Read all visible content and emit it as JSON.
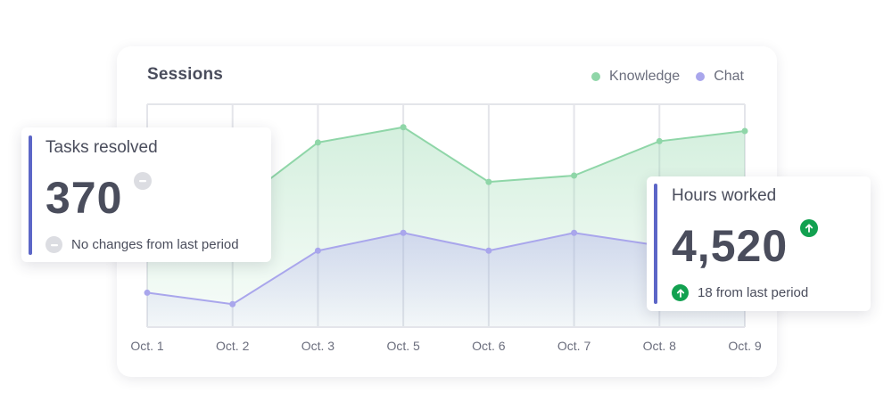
{
  "chart_data": {
    "type": "area",
    "title": "Sessions",
    "categories": [
      "Oct. 1",
      "Oct. 2",
      "Oct. 3",
      "Oct. 5",
      "Oct. 6",
      "Oct. 7",
      "Oct. 8",
      "Oct. 9"
    ],
    "series": [
      {
        "name": "Knowledge",
        "color": "#8fd6a8",
        "values": [
          160,
          188,
          290,
          314,
          228,
          238,
          292,
          308
        ]
      },
      {
        "name": "Chat",
        "color": "#a9a6ec",
        "values": [
          54,
          36,
          120,
          148,
          120,
          148,
          128,
          120
        ]
      }
    ],
    "ylim": [
      0,
      350
    ],
    "grid": true,
    "legend": "top-right"
  },
  "tasks_card": {
    "label": "Tasks resolved",
    "value": "370",
    "note": "No changes from last period",
    "status": "neutral",
    "accent": "#5c66c7"
  },
  "hours_card": {
    "label": "Hours worked",
    "value": "4,520",
    "note": "18 from last period",
    "status": "up",
    "accent": "#5c66c7",
    "up_color": "#12a150"
  }
}
